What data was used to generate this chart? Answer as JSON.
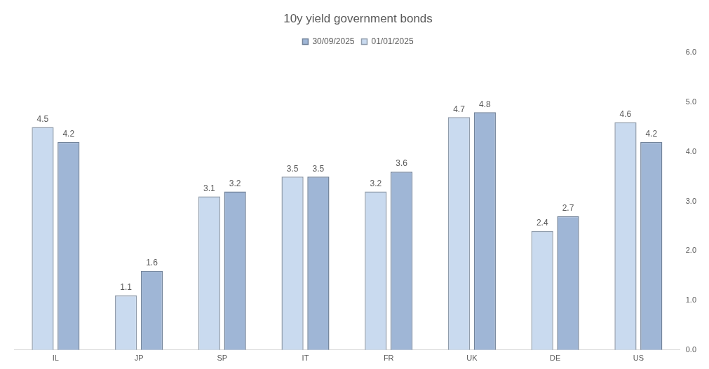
{
  "chart_data": {
    "type": "bar",
    "title": "10y yield government bonds",
    "categories": [
      "IL",
      "JP",
      "SP",
      "IT",
      "FR",
      "UK",
      "DE",
      "US"
    ],
    "series": [
      {
        "name": "01/01/2025",
        "color": "#c9daef",
        "values": [
          4.5,
          1.1,
          3.1,
          3.5,
          3.2,
          4.7,
          2.4,
          4.6
        ]
      },
      {
        "name": "30/09/2025",
        "color": "#9fb6d6",
        "values": [
          4.2,
          1.6,
          3.2,
          3.5,
          3.6,
          4.8,
          2.7,
          4.2
        ]
      }
    ],
    "ylim": [
      0,
      6
    ],
    "yticks": [
      {
        "value": 0,
        "label": "0.0"
      },
      {
        "value": 1,
        "label": "1.0"
      },
      {
        "value": 2,
        "label": "2.0"
      },
      {
        "value": 3,
        "label": "3.0"
      },
      {
        "value": 4,
        "label": "4.0"
      },
      {
        "value": 5,
        "label": "5.0"
      },
      {
        "value": 6,
        "label": "6.0"
      }
    ],
    "grid": false,
    "legend": "top",
    "data_labels": true
  }
}
